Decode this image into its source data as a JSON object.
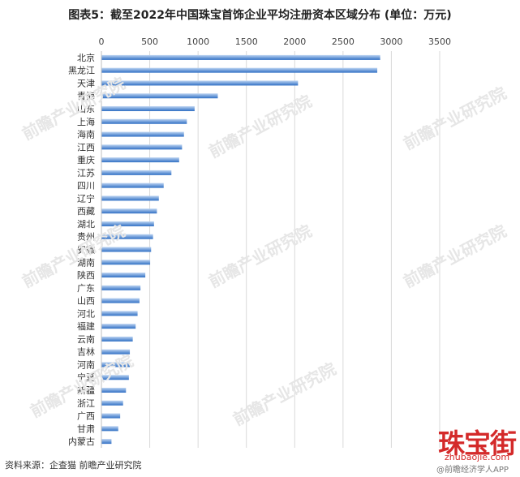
{
  "title": "图表5：截至2022年中国珠宝首饰企业平均注册资本区域分布 (单位：万元)",
  "source": "资料来源：企查猫 前瞻产业研究院",
  "logo": {
    "text": "珠宝街",
    "domain": "zhubaojie.com"
  },
  "watermark": {
    "text": "前瞻产业研究院",
    "corner_text": "@前瞻经济学人APP"
  },
  "colors": {
    "bar_dark": "#2f6fc4",
    "bar_light": "#bcd4f2",
    "grid": "#d9d9d9"
  },
  "chart_data": {
    "type": "bar",
    "orientation": "horizontal",
    "axis_position": "top",
    "categories": [
      "北京",
      "黑龙江",
      "天津",
      "青海",
      "山东",
      "上海",
      "海南",
      "江西",
      "重庆",
      "江苏",
      "四川",
      "辽宁",
      "西藏",
      "湖北",
      "贵州",
      "安徽",
      "湖南",
      "陕西",
      "广东",
      "山西",
      "河北",
      "福建",
      "云南",
      "吉林",
      "河南",
      "宁夏",
      "新疆",
      "浙江",
      "广西",
      "甘肃",
      "内蒙古"
    ],
    "values": [
      2880,
      2850,
      2030,
      1200,
      960,
      880,
      850,
      830,
      800,
      720,
      640,
      590,
      570,
      540,
      530,
      510,
      500,
      450,
      400,
      390,
      370,
      350,
      320,
      290,
      290,
      280,
      250,
      220,
      190,
      170,
      100
    ],
    "xlim": [
      0,
      3500
    ],
    "ticks": [
      0,
      500,
      1000,
      1500,
      2000,
      2500,
      3000,
      3500
    ],
    "grid": true,
    "legend": "none"
  }
}
